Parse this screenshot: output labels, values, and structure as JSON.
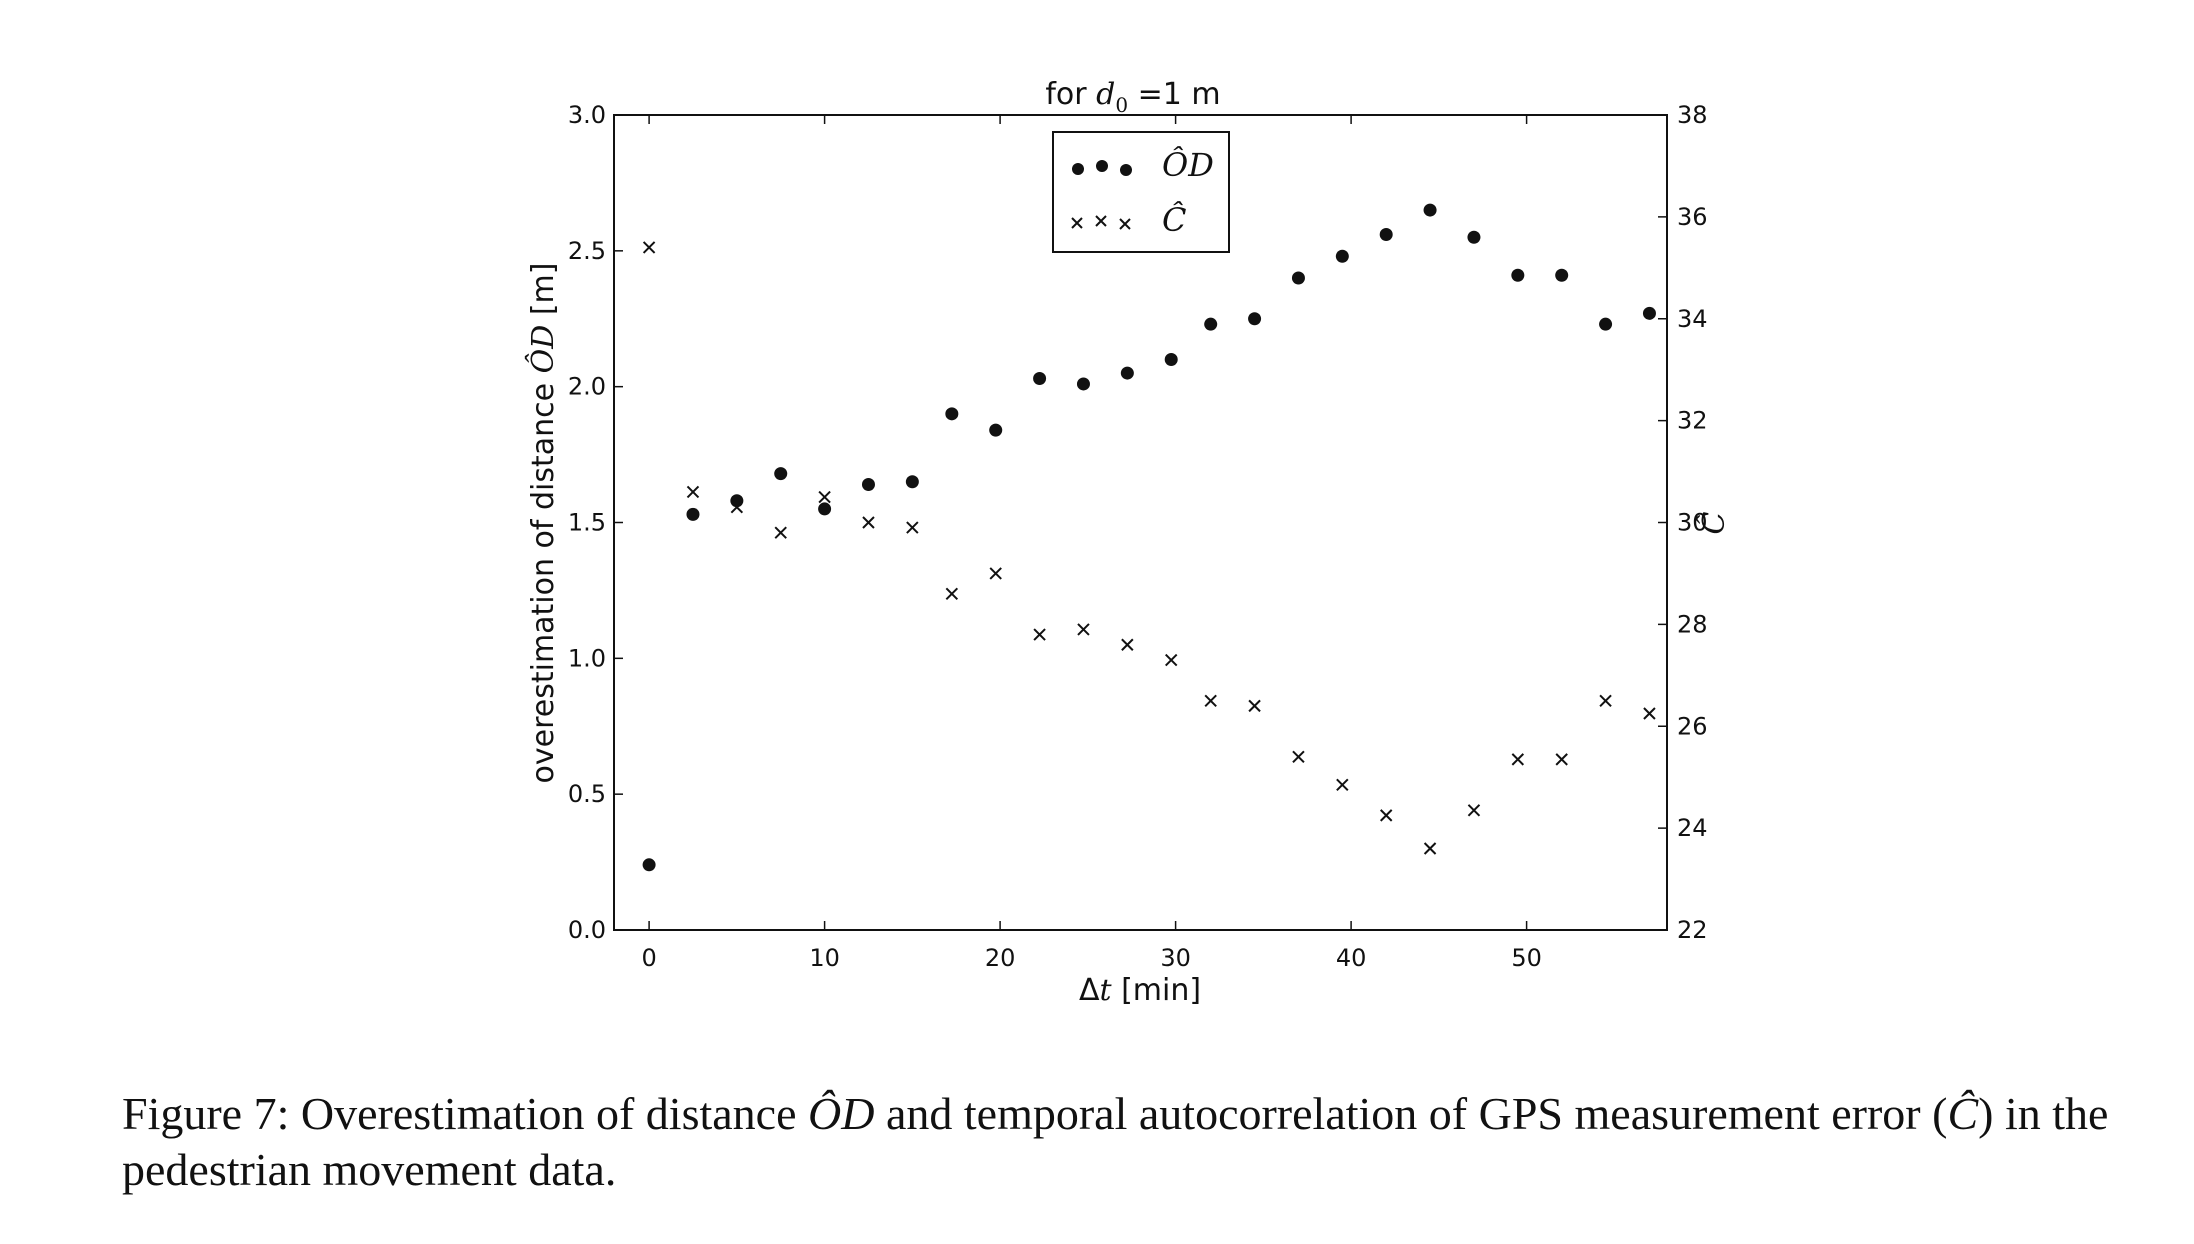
{
  "chart_data": {
    "type": "scatter",
    "title_prefix": "for ",
    "title_var": "d",
    "title_sub": "0",
    "title_suffix": " =1 m",
    "xlabel_symbol": "Δ",
    "xlabel_var": "t",
    "xlabel_unit": " [min]",
    "ylabel_left_text": "overestimation of distance ",
    "ylabel_left_var": "ÔD",
    "ylabel_left_unit": " [m]",
    "ylabel_right": "Ĉ",
    "xlim": [
      -2,
      58
    ],
    "ylim_left": [
      0.0,
      3.0
    ],
    "ylim_right": [
      22,
      38
    ],
    "xticks": [
      "0",
      "10",
      "20",
      "30",
      "40",
      "50"
    ],
    "yticks_left": [
      "0.0",
      "0.5",
      "1.0",
      "1.5",
      "2.0",
      "2.5",
      "3.0"
    ],
    "yticks_right": [
      "22",
      "24",
      "26",
      "28",
      "30",
      "32",
      "34",
      "36",
      "38"
    ],
    "legend_location": "top-center",
    "series": [
      {
        "name": "ÔD",
        "marker": "circle",
        "axis": "left",
        "x": [
          0,
          2.5,
          5,
          7.5,
          10,
          12.5,
          15,
          17.25,
          19.75,
          22.25,
          24.75,
          27.25,
          29.75,
          32.0,
          34.5,
          37.0,
          39.5,
          42.0,
          44.5,
          47.0,
          49.5,
          52.0,
          54.5,
          57.0
        ],
        "values": [
          0.24,
          1.53,
          1.58,
          1.68,
          1.55,
          1.64,
          1.65,
          1.9,
          1.84,
          2.03,
          2.01,
          2.05,
          2.1,
          2.23,
          2.25,
          2.4,
          2.48,
          2.56,
          2.65,
          2.55,
          2.41,
          2.41,
          2.23,
          2.27
        ]
      },
      {
        "name": "Ĉ",
        "marker": "x",
        "axis": "right",
        "x": [
          0,
          2.5,
          5,
          7.5,
          10,
          12.5,
          15,
          17.25,
          19.75,
          22.25,
          24.75,
          27.25,
          29.75,
          32.0,
          34.5,
          37.0,
          39.5,
          42.0,
          44.5,
          47.0,
          49.5,
          52.0,
          54.5,
          57.0
        ],
        "values": [
          35.4,
          30.6,
          30.3,
          29.8,
          30.5,
          30.0,
          29.9,
          28.6,
          29.0,
          27.8,
          27.9,
          27.6,
          27.3,
          26.5,
          26.4,
          25.4,
          24.85,
          24.25,
          23.6,
          24.35,
          25.35,
          25.35,
          26.5,
          26.25
        ]
      }
    ]
  },
  "caption": {
    "prefix": "Figure 7: Overestimation of distance ",
    "var1": "ÔD",
    "mid": " and temporal autocorrelation of GPS measurement error (",
    "var2": "Ĉ",
    "suffix": ") in the pedestrian movement data."
  }
}
